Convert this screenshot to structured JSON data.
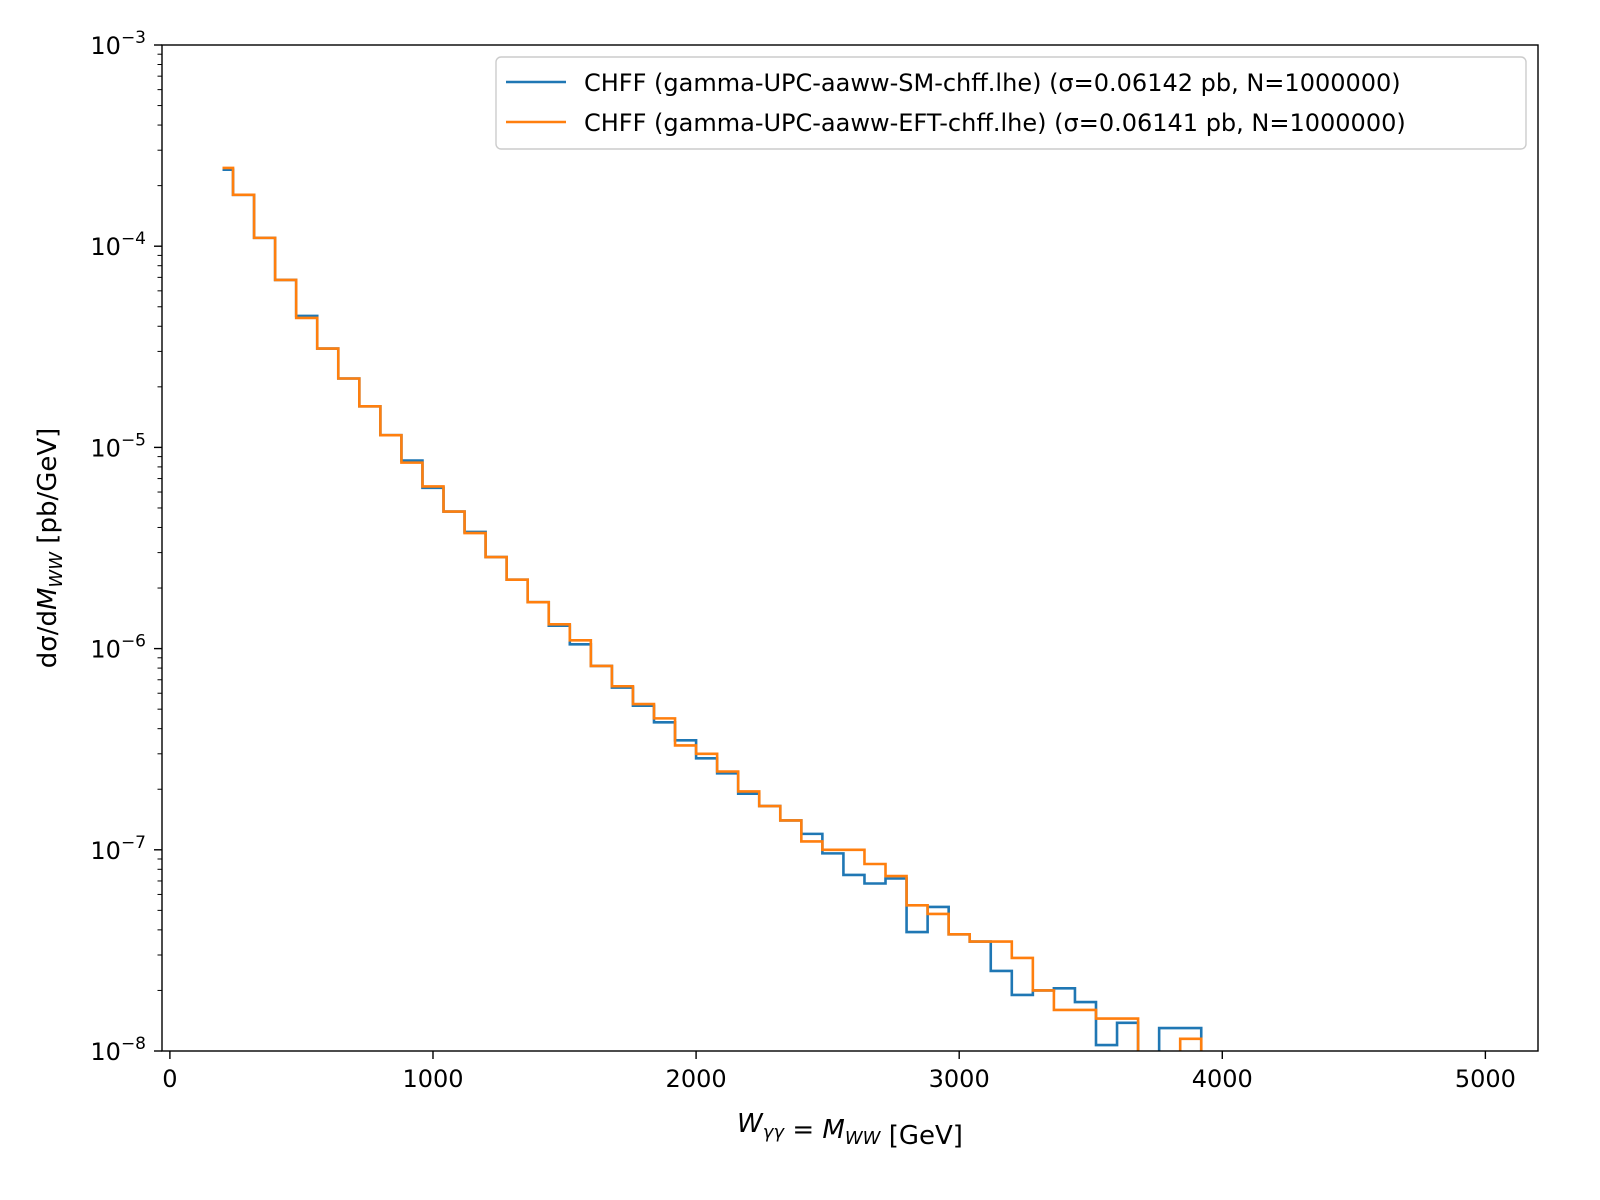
{
  "chart_data": {
    "type": "line",
    "xlabel": "W_γγ = M_WW [GeV]",
    "ylabel": "dσ/dM_WW [pb/GeV]",
    "xlim": [
      -30,
      5200
    ],
    "ylim": [
      1e-08,
      0.001
    ],
    "yscale": "log",
    "x_ticks": [
      0,
      1000,
      2000,
      3000,
      4000,
      5000
    ],
    "x_tick_labels": [
      "0",
      "1000",
      "2000",
      "3000",
      "4000",
      "5000"
    ],
    "y_ticks": [
      -8,
      -7,
      -6,
      -5,
      -4,
      -3
    ],
    "y_tick_labels": [
      "10",
      "10",
      "10",
      "10",
      "10",
      "10"
    ],
    "y_tick_exponents": [
      "−8",
      "−7",
      "−6",
      "−5",
      "−4",
      "−3"
    ],
    "legend_position": "top-right",
    "grid": false,
    "bin_edges": [
      200,
      240,
      320,
      400,
      480,
      560,
      640,
      720,
      800,
      880,
      960,
      1040,
      1120,
      1200,
      1280,
      1360,
      1440,
      1520,
      1600,
      1680,
      1760,
      1840,
      1920,
      2000,
      2080,
      2160,
      2240,
      2320,
      2400,
      2480,
      2560,
      2640,
      2720,
      2800,
      2880,
      2960,
      3040,
      3120,
      3200,
      3280,
      3360,
      3440,
      3520,
      3600,
      3680,
      3760,
      3840,
      3920
    ],
    "series": [
      {
        "name": "CHFF (gamma-UPC-aaww-SM-chff.lhe) (σ=0.06142 pb, N=1000000)",
        "color": "#1f77b4",
        "values": [
          0.00024,
          0.00018,
          0.00011,
          6.8e-05,
          4.5e-05,
          3.1e-05,
          2.2e-05,
          1.6e-05,
          1.15e-05,
          8.6e-06,
          6.3e-06,
          4.8e-06,
          3.8e-06,
          2.85e-06,
          2.2e-06,
          1.7e-06,
          1.3e-06,
          1.05e-06,
          8.2e-07,
          6.4e-07,
          5.2e-07,
          4.3e-07,
          3.5e-07,
          2.85e-07,
          2.4e-07,
          1.9e-07,
          1.65e-07,
          1.4e-07,
          1.2e-07,
          9.6e-08,
          7.5e-08,
          6.8e-08,
          7.2e-08,
          3.9e-08,
          5.2e-08,
          3.8e-08,
          3.5e-08,
          2.5e-08,
          1.9e-08,
          2e-08,
          2.05e-08,
          1.75e-08,
          1.07e-08,
          1.38e-08,
          0,
          1.3e-08,
          1.3e-08,
          0
        ]
      },
      {
        "name": "CHFF (gamma-UPC-aaww-EFT-chff.lhe) (σ=0.06141 pb, N=1000000)",
        "color": "#ff7f0e",
        "values": [
          0.000245,
          0.00018,
          0.00011,
          6.8e-05,
          4.4e-05,
          3.1e-05,
          2.2e-05,
          1.6e-05,
          1.15e-05,
          8.4e-06,
          6.4e-06,
          4.8e-06,
          3.75e-06,
          2.85e-06,
          2.2e-06,
          1.7e-06,
          1.32e-06,
          1.1e-06,
          8.2e-07,
          6.5e-07,
          5.3e-07,
          4.5e-07,
          3.3e-07,
          3e-07,
          2.45e-07,
          1.95e-07,
          1.65e-07,
          1.4e-07,
          1.1e-07,
          1e-07,
          1e-07,
          8.5e-08,
          7.4e-08,
          5.3e-08,
          4.8e-08,
          3.8e-08,
          3.5e-08,
          3.5e-08,
          2.9e-08,
          2e-08,
          1.6e-08,
          1.6e-08,
          1.45e-08,
          1.45e-08,
          0,
          0,
          1.15e-08,
          0
        ]
      }
    ]
  }
}
